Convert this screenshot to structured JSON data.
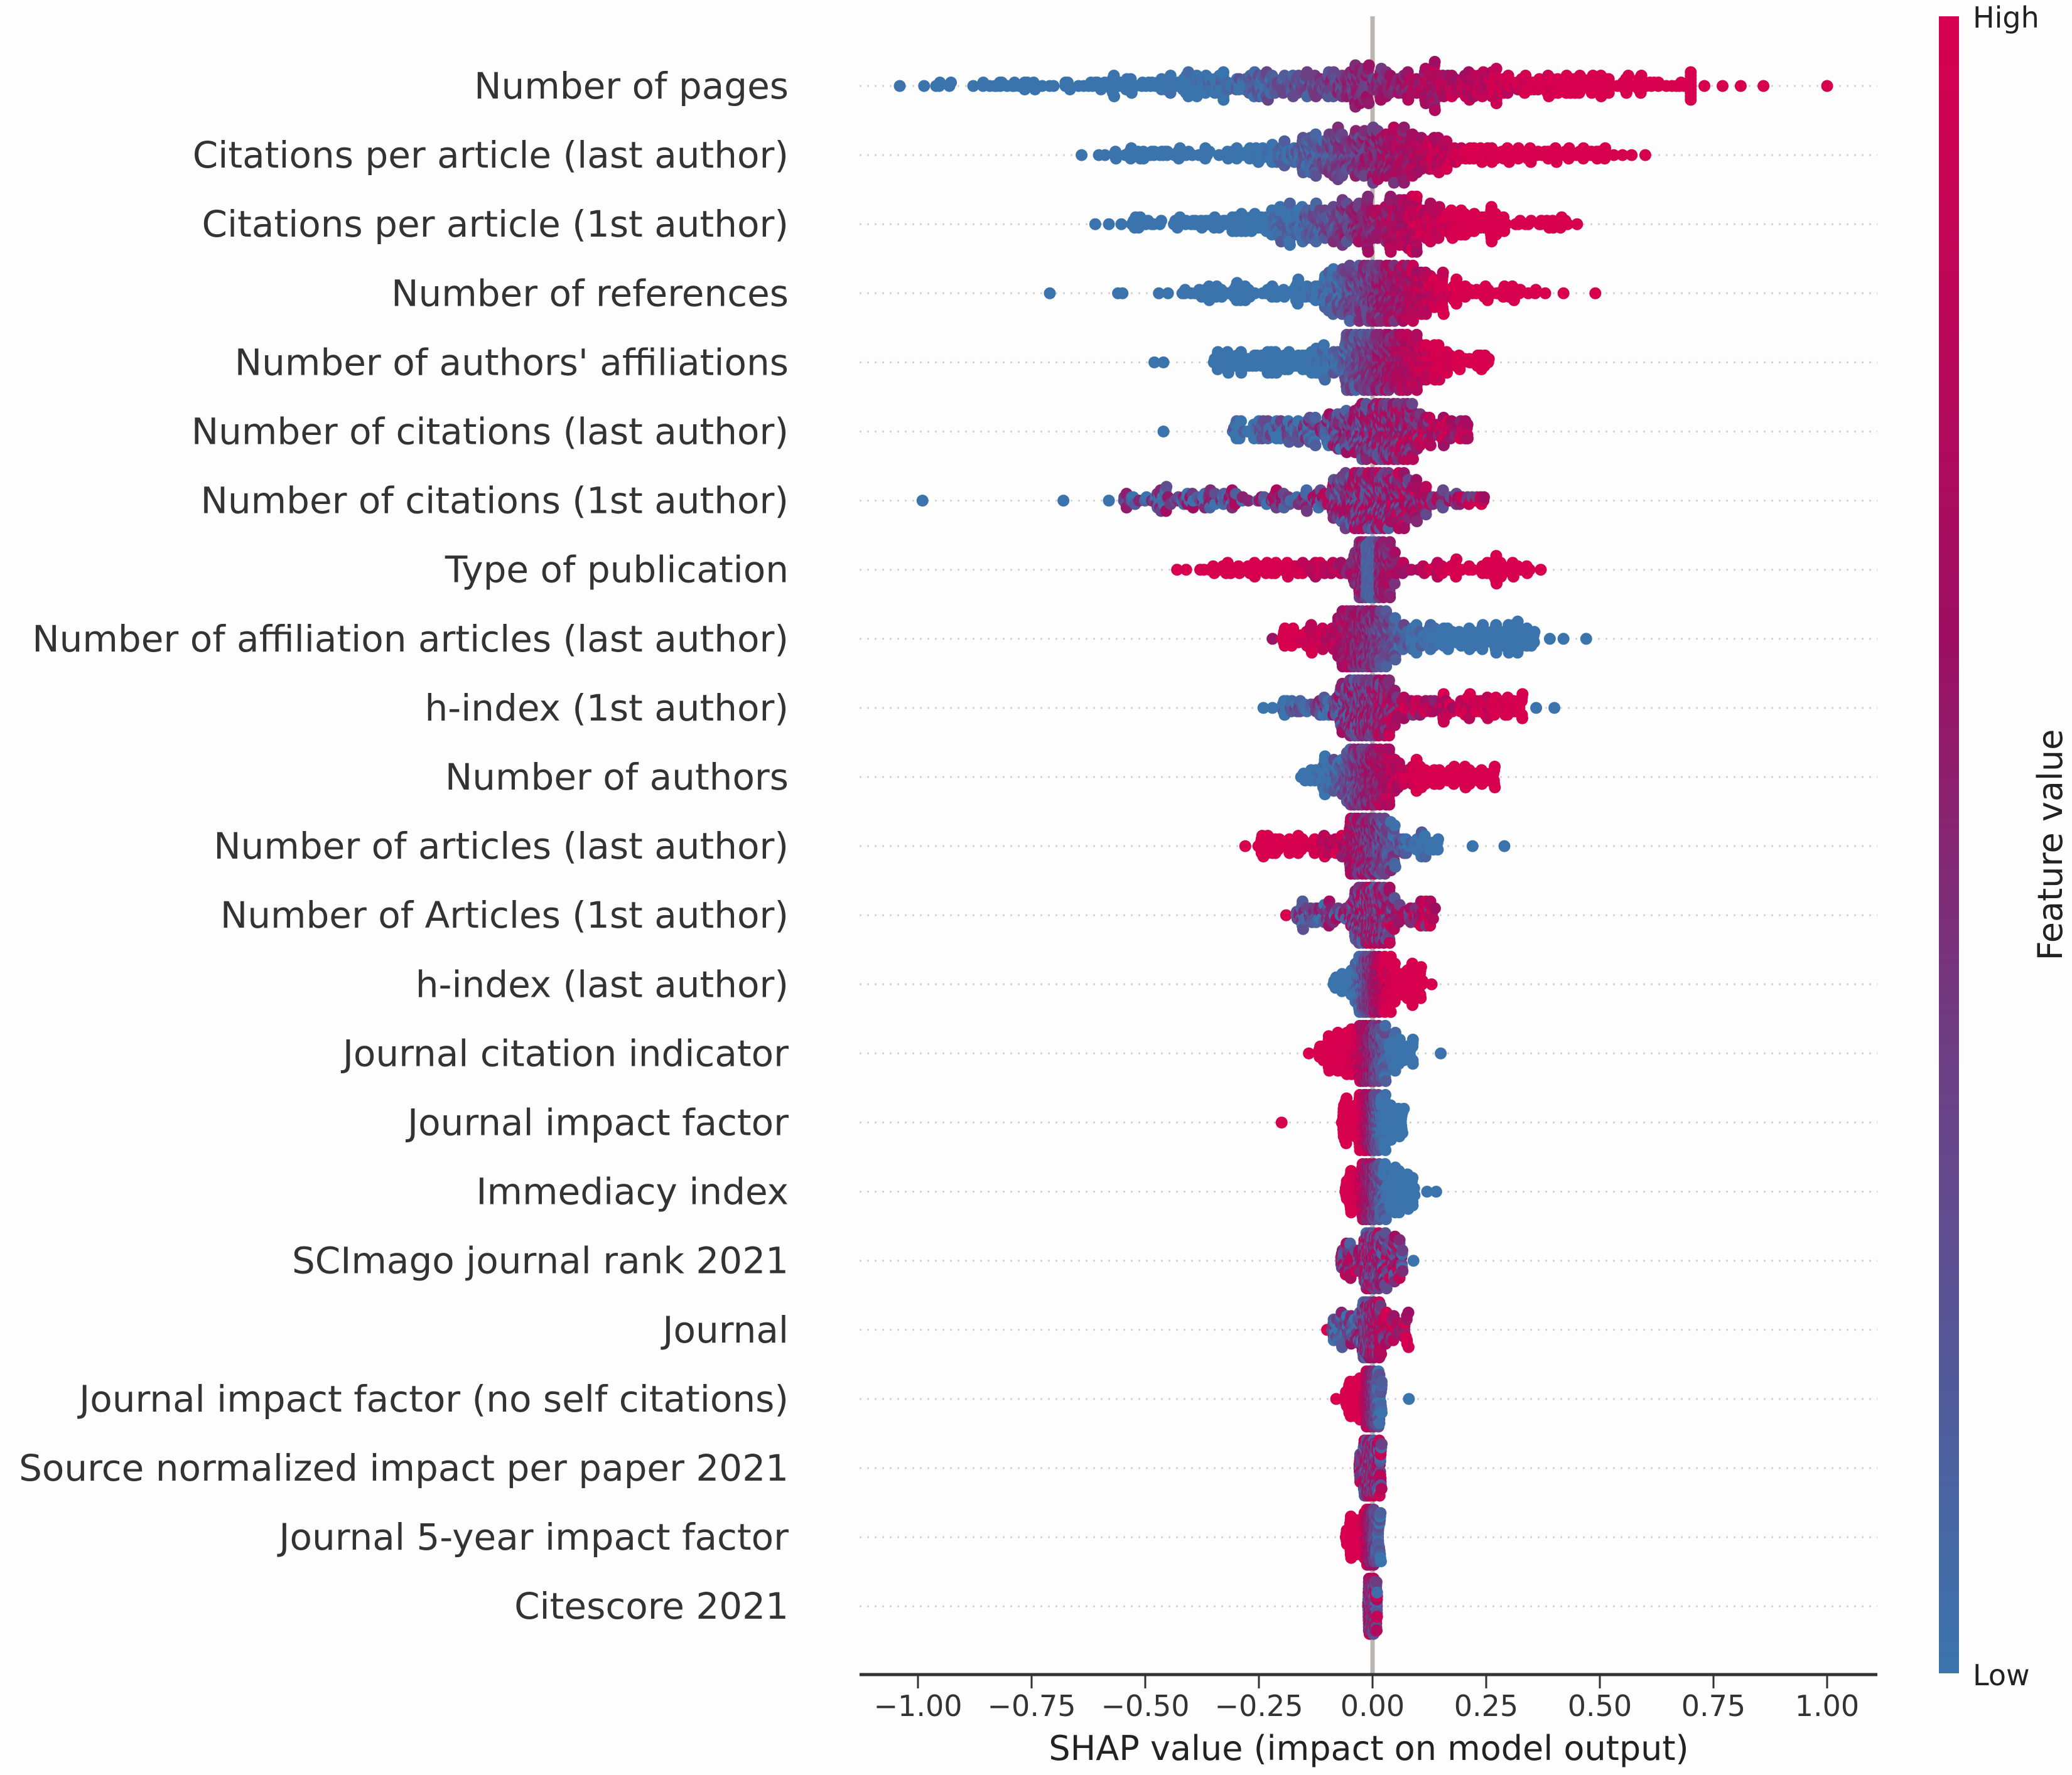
{
  "chart_data": {
    "type": "scatter",
    "subtype": "beeswarm",
    "title": "",
    "xlabel": "SHAP value (impact on model output)",
    "ylabel": "",
    "xlim": [
      -1.13,
      1.12
    ],
    "x_ticks": [
      -1.0,
      -0.75,
      -0.5,
      -0.25,
      0.0,
      0.25,
      0.5,
      0.75,
      1.0
    ],
    "x_tick_labels": [
      "−1.00",
      "−0.75",
      "−0.50",
      "−0.25",
      "0.00",
      "0.25",
      "0.50",
      "0.75",
      "1.00"
    ],
    "reference_line_x": 0.0,
    "grid": false,
    "colorbar": {
      "title": "Feature value",
      "high_label": "High",
      "low_label": "Low",
      "high_color": "#d6004f",
      "mid_color": "#7d2a78",
      "low_color": "#3b74ad",
      "placement": "right"
    },
    "features": [
      {
        "label": "Number of pages",
        "min": -1.0,
        "max": 0.7,
        "peak": 0.0,
        "spread": 0.34,
        "tail": 0.12,
        "color_trend": 1.0,
        "mode": "linear",
        "n": 700,
        "outliers": [
          [
            -1.04,
            0
          ],
          [
            0.73,
            1
          ],
          [
            0.77,
            1
          ],
          [
            0.81,
            1
          ],
          [
            0.86,
            1
          ],
          [
            1.0,
            1
          ]
        ]
      },
      {
        "label": "Citations per article (last author)",
        "min": -0.62,
        "max": 0.54,
        "peak": 0.0,
        "spread": 0.14,
        "tail": 0.35,
        "color_trend": 1.0,
        "mode": "linear",
        "n": 600,
        "outliers": [
          [
            -0.64,
            0
          ],
          [
            0.55,
            1
          ],
          [
            0.57,
            1
          ],
          [
            0.6,
            1
          ]
        ]
      },
      {
        "label": "Citations per article (1st author)",
        "min": -0.56,
        "max": 0.43,
        "peak": -0.02,
        "spread": 0.16,
        "tail": 0.25,
        "color_trend": 1.0,
        "mode": "linear",
        "n": 600,
        "outliers": [
          [
            -0.61,
            0
          ],
          [
            -0.58,
            0
          ],
          [
            0.45,
            1
          ]
        ]
      },
      {
        "label": "Number of references",
        "min": -0.42,
        "max": 0.36,
        "peak": 0.02,
        "spread": 0.07,
        "tail": 0.35,
        "color_trend": 1.0,
        "mode": "linear",
        "n": 600,
        "outliers": [
          [
            -0.71,
            0
          ],
          [
            -0.56,
            0
          ],
          [
            -0.55,
            0
          ],
          [
            -0.47,
            0
          ],
          [
            -0.45,
            0
          ],
          [
            0.38,
            1
          ],
          [
            0.42,
            1
          ],
          [
            0.49,
            1
          ]
        ]
      },
      {
        "label": "Number of authors' affiliations",
        "min": -0.35,
        "max": 0.26,
        "peak": 0.02,
        "spread": 0.06,
        "tail": 0.45,
        "color_trend": 1.0,
        "mode": "linear",
        "n": 600,
        "outliers": [
          [
            -0.48,
            0
          ],
          [
            -0.46,
            0
          ]
        ]
      },
      {
        "label": "Number of citations (last author)",
        "min": -0.31,
        "max": 0.21,
        "peak": 0.02,
        "spread": 0.05,
        "tail": 0.45,
        "color_trend": 0.4,
        "mode": "linear",
        "n": 600,
        "outliers": [
          [
            -0.46,
            0
          ]
        ]
      },
      {
        "label": "Number of citations (1st author)",
        "min": -0.55,
        "max": 0.25,
        "peak": 0.0,
        "spread": 0.05,
        "tail": 0.4,
        "color_trend": 0.2,
        "mode": "linear",
        "n": 600,
        "outliers": [
          [
            -0.99,
            0
          ],
          [
            -0.68,
            0
          ],
          [
            -0.58,
            0
          ]
        ]
      },
      {
        "label": "Type of publication",
        "min": -0.38,
        "max": 0.35,
        "peak": 0.0,
        "spread": 0.02,
        "tail": 0.35,
        "color_trend": 1.0,
        "mode": "vshape",
        "n": 600,
        "outliers": [
          [
            -0.43,
            1
          ],
          [
            -0.41,
            1
          ],
          [
            0.31,
            1
          ],
          [
            0.37,
            1
          ]
        ]
      },
      {
        "label": "Number of affiliation articles (last author)",
        "min": -0.2,
        "max": 0.36,
        "peak": -0.02,
        "spread": 0.03,
        "tail": 0.45,
        "color_trend": -1.0,
        "mode": "linear",
        "n": 600,
        "outliers": [
          [
            -0.22,
            0.6
          ],
          [
            0.39,
            0
          ],
          [
            0.42,
            0
          ],
          [
            0.47,
            0
          ]
        ]
      },
      {
        "label": "h-index (1st author)",
        "min": -0.2,
        "max": 0.33,
        "peak": -0.01,
        "spread": 0.03,
        "tail": 0.4,
        "color_trend": 0.5,
        "mode": "linear",
        "n": 600,
        "outliers": [
          [
            -0.24,
            0
          ],
          [
            -0.22,
            0
          ],
          [
            0.36,
            0
          ],
          [
            0.4,
            0
          ]
        ]
      },
      {
        "label": "Number of authors",
        "min": -0.16,
        "max": 0.27,
        "peak": -0.01,
        "spread": 0.03,
        "tail": 0.4,
        "color_trend": 1.0,
        "mode": "linear",
        "n": 500,
        "outliers": []
      },
      {
        "label": "Number of articles (last author)",
        "min": -0.26,
        "max": 0.15,
        "peak": -0.01,
        "spread": 0.025,
        "tail": 0.35,
        "color_trend": -0.8,
        "mode": "linear",
        "n": 500,
        "outliers": [
          [
            -0.28,
            1
          ],
          [
            0.22,
            0
          ],
          [
            0.29,
            0
          ]
        ]
      },
      {
        "label": "Number of Articles (1st author)",
        "min": -0.17,
        "max": 0.14,
        "peak": 0.0,
        "spread": 0.02,
        "tail": 0.35,
        "color_trend": 0.2,
        "mode": "linear",
        "n": 500,
        "outliers": [
          [
            -0.19,
            1
          ]
        ]
      },
      {
        "label": "h-index (last author)",
        "min": -0.09,
        "max": 0.11,
        "peak": 0.0,
        "spread": 0.015,
        "tail": 0.35,
        "color_trend": 1.0,
        "mode": "linear",
        "n": 500,
        "outliers": [
          [
            0.13,
            1
          ]
        ]
      },
      {
        "label": "Journal citation indicator",
        "min": -0.12,
        "max": 0.09,
        "peak": 0.0,
        "spread": 0.015,
        "tail": 0.35,
        "color_trend": -1.0,
        "mode": "linear",
        "n": 500,
        "outliers": [
          [
            -0.14,
            1
          ],
          [
            0.15,
            0
          ]
        ]
      },
      {
        "label": "Journal impact factor",
        "min": -0.07,
        "max": 0.07,
        "peak": 0.0,
        "spread": 0.012,
        "tail": 0.3,
        "color_trend": -1.0,
        "mode": "linear",
        "n": 500,
        "outliers": [
          [
            -0.2,
            1
          ]
        ]
      },
      {
        "label": "Immediacy index",
        "min": -0.06,
        "max": 0.1,
        "peak": 0.0,
        "spread": 0.01,
        "tail": 0.3,
        "color_trend": -1.0,
        "mode": "linear",
        "n": 500,
        "outliers": [
          [
            0.12,
            0
          ],
          [
            0.14,
            0
          ]
        ]
      },
      {
        "label": "SCImago journal rank 2021",
        "min": -0.07,
        "max": 0.07,
        "peak": 0.0,
        "spread": 0.01,
        "tail": 0.25,
        "color_trend": 0.0,
        "mode": "linear",
        "n": 500,
        "outliers": [
          [
            0.09,
            0
          ]
        ]
      },
      {
        "label": "Journal",
        "min": -0.09,
        "max": 0.08,
        "peak": 0.0,
        "spread": 0.01,
        "tail": 0.3,
        "color_trend": 0.3,
        "mode": "linear",
        "n": 500,
        "outliers": [
          [
            -0.1,
            1
          ]
        ]
      },
      {
        "label": "Journal impact factor (no self citations)",
        "min": -0.06,
        "max": 0.02,
        "peak": 0.0,
        "spread": 0.008,
        "tail": 0.2,
        "color_trend": -1.0,
        "mode": "linear",
        "n": 500,
        "outliers": [
          [
            -0.08,
            1
          ],
          [
            0.08,
            0
          ]
        ]
      },
      {
        "label": "Source normalized impact per paper 2021",
        "min": -0.03,
        "max": 0.02,
        "peak": 0.0,
        "spread": 0.006,
        "tail": 0.2,
        "color_trend": 0.0,
        "mode": "linear",
        "n": 500,
        "outliers": []
      },
      {
        "label": "Journal 5-year impact factor",
        "min": -0.06,
        "max": 0.02,
        "peak": 0.0,
        "spread": 0.006,
        "tail": 0.2,
        "color_trend": -1.0,
        "mode": "linear",
        "n": 500,
        "outliers": []
      },
      {
        "label": "Citescore 2021",
        "min": -0.01,
        "max": 0.01,
        "peak": 0.0,
        "spread": 0.004,
        "tail": 0.1,
        "color_trend": 0.0,
        "mode": "linear",
        "n": 500,
        "outliers": []
      }
    ]
  }
}
